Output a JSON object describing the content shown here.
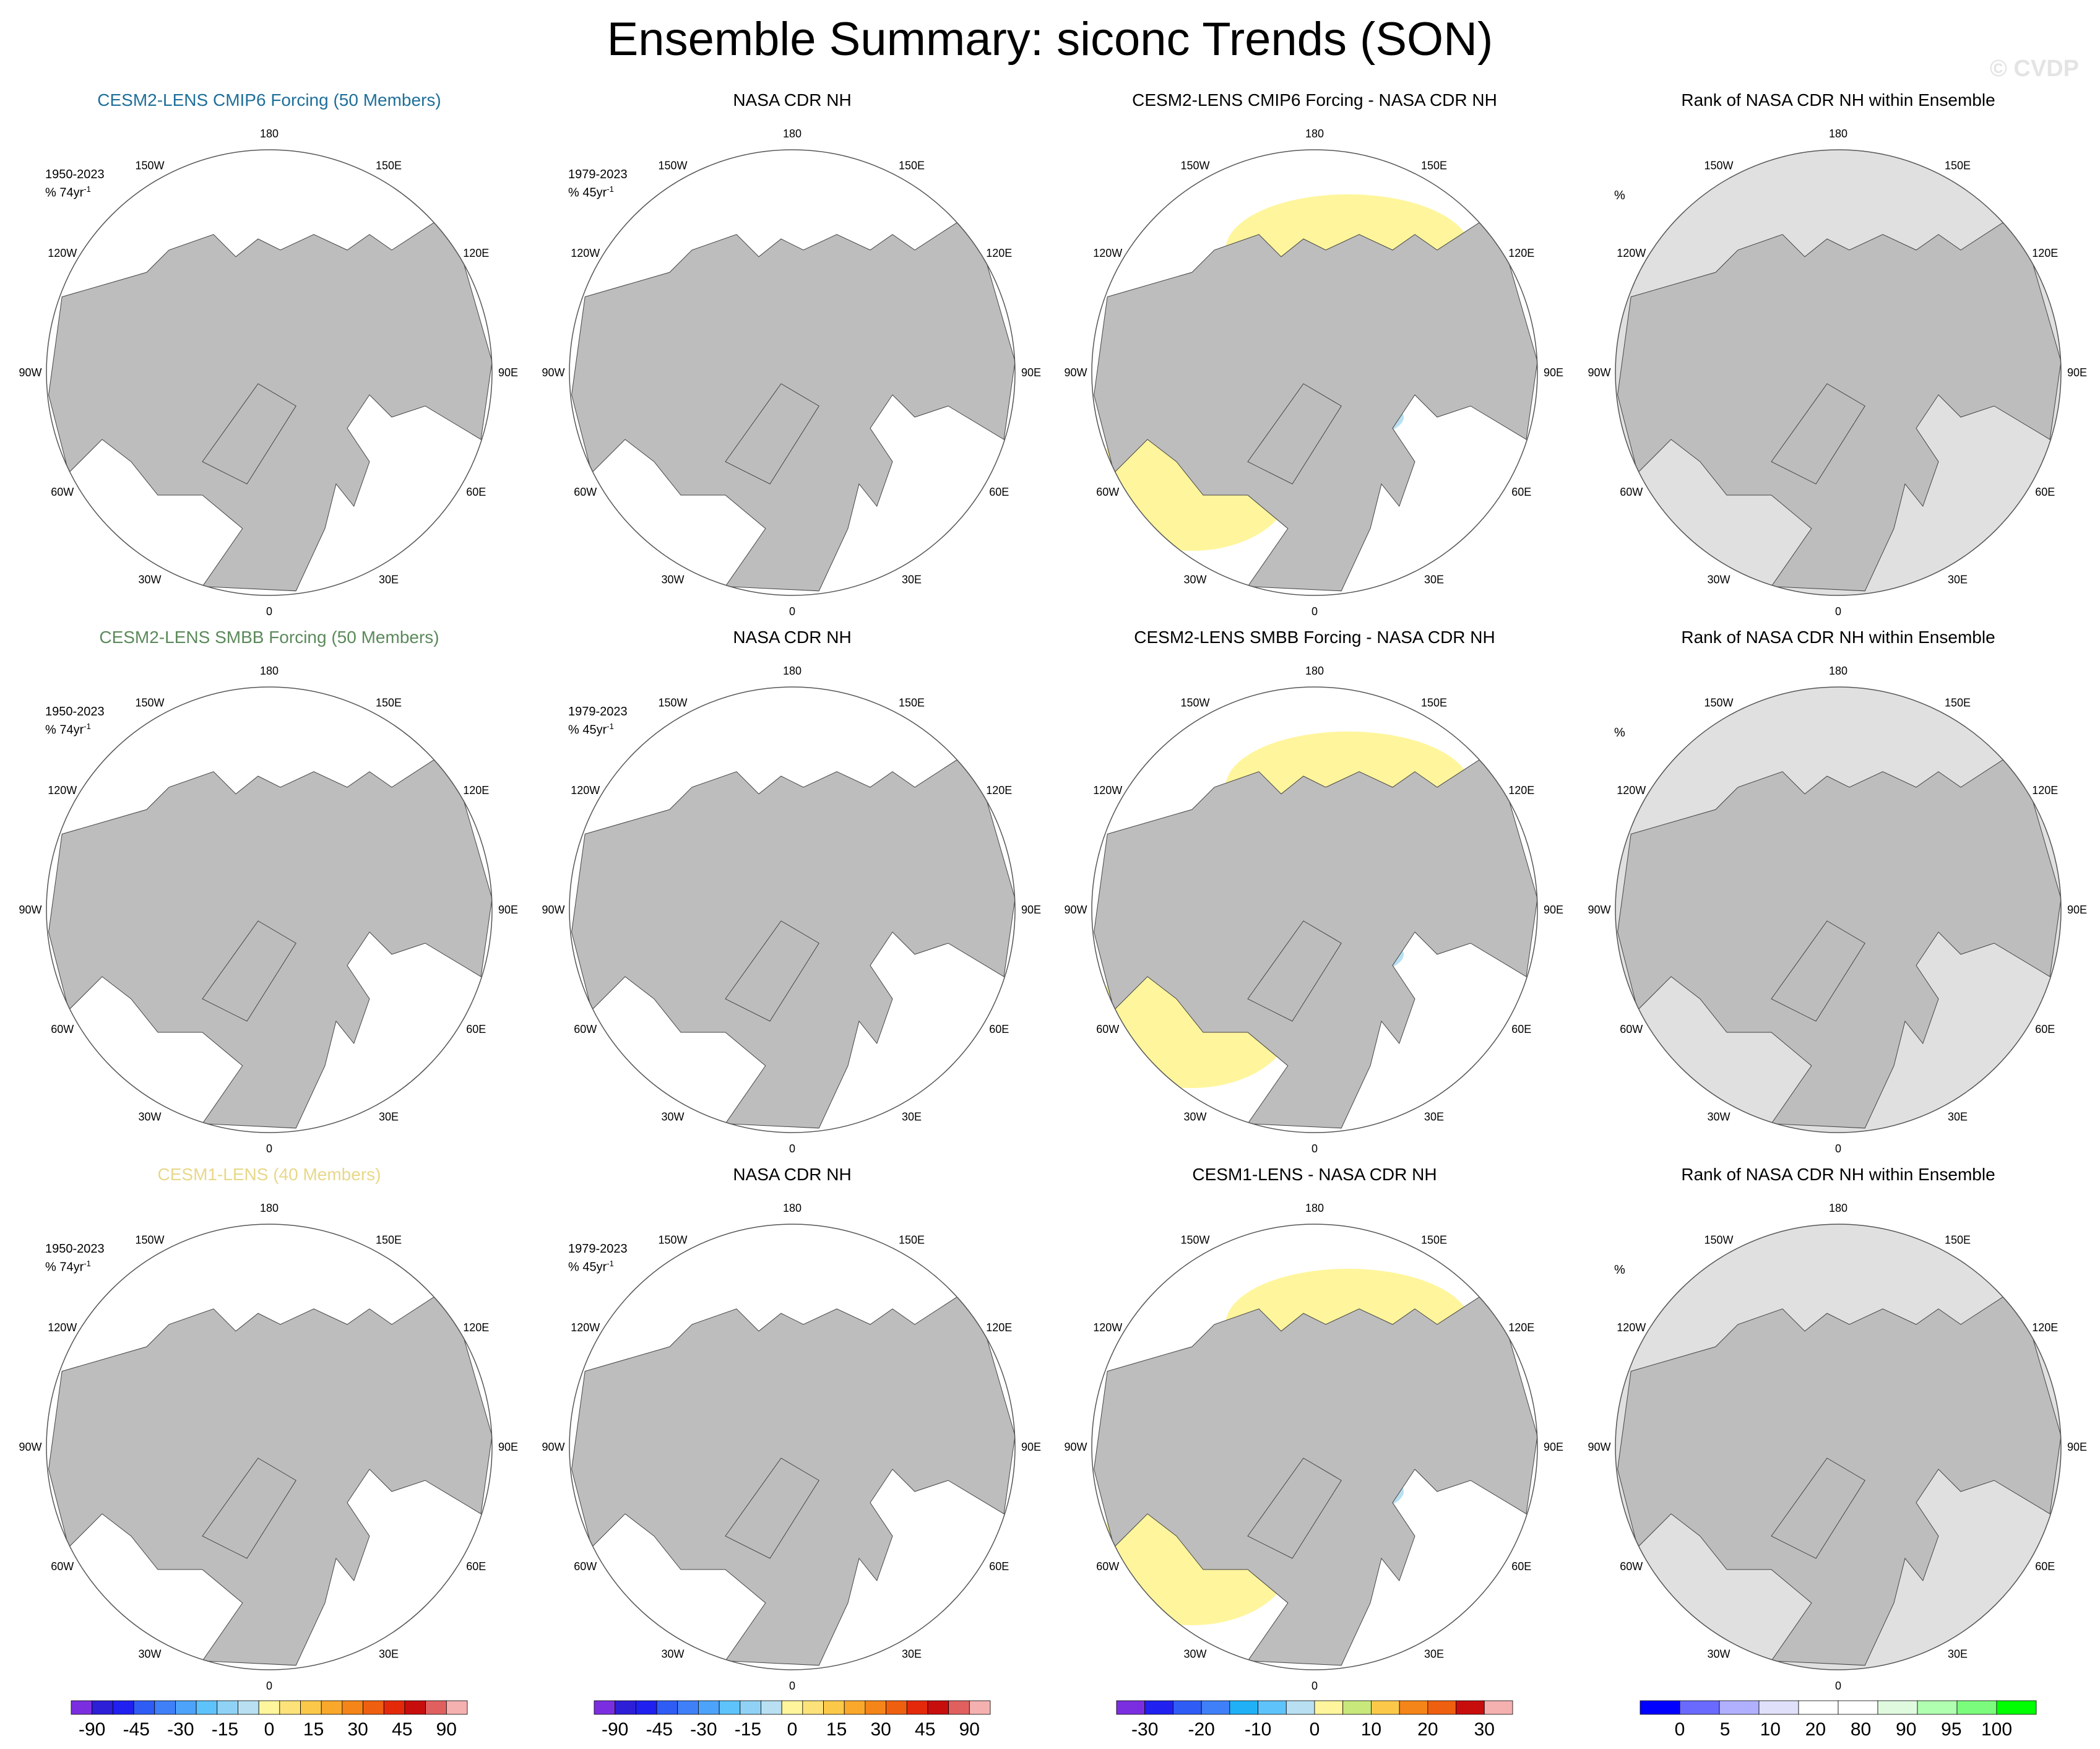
{
  "title": "Ensemble Summary: siconc Trends (SON)",
  "watermark": "© CVDP",
  "colors": {
    "land": "#bdbdbd",
    "ocean": "#ffffff",
    "rank_background": "#e0e0e0",
    "cesm2_cmip6_title": "#1f6f9a",
    "cesm2_smbb_title": "#5b8a5b",
    "cesm1_title": "#e8d88a"
  },
  "rows": [
    {
      "model_title": "CESM2-LENS CMIP6 Forcing (50 Members)",
      "model_title_color": "#1f6f9a",
      "model_period": "1950-2023",
      "model_units": "% 74yr",
      "obs_title": "NASA CDR NH",
      "obs_period": "1979-2023",
      "obs_units": "% 45yr",
      "diff_title": "CESM2-LENS CMIP6 Forcing - NASA CDR NH",
      "rank_title": "Rank of NASA CDR NH within Ensemble",
      "rank_units": "%"
    },
    {
      "model_title": "CESM2-LENS SMBB Forcing (50 Members)",
      "model_title_color": "#5b8a5b",
      "model_period": "1950-2023",
      "model_units": "% 74yr",
      "obs_title": "NASA CDR NH",
      "obs_period": "1979-2023",
      "obs_units": "% 45yr",
      "diff_title": "CESM2-LENS SMBB Forcing - NASA CDR NH",
      "rank_title": "Rank of NASA CDR NH within Ensemble",
      "rank_units": "%"
    },
    {
      "model_title": "CESM1-LENS (40 Members)",
      "model_title_color": "#e8d88a",
      "model_period": "1950-2023",
      "model_units": "% 74yr",
      "obs_title": "NASA CDR NH",
      "obs_period": "1979-2023",
      "obs_units": "% 45yr",
      "diff_title": "CESM1-LENS - NASA CDR NH",
      "rank_title": "Rank of NASA CDR NH within Ensemble",
      "rank_units": "%"
    }
  ],
  "longitude_labels": [
    "180",
    "150E",
    "120E",
    "90E",
    "60E",
    "30E",
    "0",
    "30W",
    "60W",
    "90W",
    "120W",
    "150W"
  ],
  "colorbars": [
    {
      "name": "trend",
      "colors": [
        "#7b2ee0",
        "#2d1ed8",
        "#2020f0",
        "#2f5cf5",
        "#3f7ff8",
        "#4da3fa",
        "#5fc3fb",
        "#8fd2f5",
        "#b8e0f2",
        "#fff59c",
        "#fde27a",
        "#fbc84a",
        "#f9a82c",
        "#f58518",
        "#ef5f10",
        "#e4290b",
        "#c80d0d",
        "#e06060",
        "#f5b0b0"
      ],
      "labels": [
        "-90",
        "-45",
        "-30",
        "-15",
        "0",
        "15",
        "30",
        "45",
        "90"
      ]
    },
    {
      "name": "trend",
      "colors": [
        "#7b2ee0",
        "#2d1ed8",
        "#2020f0",
        "#2f5cf5",
        "#3f7ff8",
        "#4da3fa",
        "#5fc3fb",
        "#8fd2f5",
        "#b8e0f2",
        "#fff59c",
        "#fde27a",
        "#fbc84a",
        "#f9a82c",
        "#f58518",
        "#ef5f10",
        "#e4290b",
        "#c80d0d",
        "#e06060",
        "#f5b0b0"
      ],
      "labels": [
        "-90",
        "-45",
        "-30",
        "-15",
        "0",
        "15",
        "30",
        "45",
        "90"
      ]
    },
    {
      "name": "difference",
      "colors": [
        "#7b2ee0",
        "#2020f0",
        "#2f5cf5",
        "#3f7ff8",
        "#1fb0f5",
        "#5fc3fb",
        "#b8e0f2",
        "#fff59c",
        "#c8e87c",
        "#fbc84a",
        "#f58518",
        "#ef5f10",
        "#c80d0d",
        "#f5b0b0"
      ],
      "labels": [
        "-30",
        "-20",
        "-10",
        "0",
        "10",
        "20",
        "30"
      ]
    },
    {
      "name": "rank",
      "colors": [
        "#0000ff",
        "#6a6aff",
        "#b0b0ff",
        "#e0e0fa",
        "#ffffff",
        "#ffffff",
        "#e0fae0",
        "#b0ffb0",
        "#7cfc7c",
        "#00ff00"
      ],
      "labels": [
        "0",
        "5",
        "10",
        "20",
        "80",
        "90",
        "95",
        "100"
      ]
    }
  ]
}
